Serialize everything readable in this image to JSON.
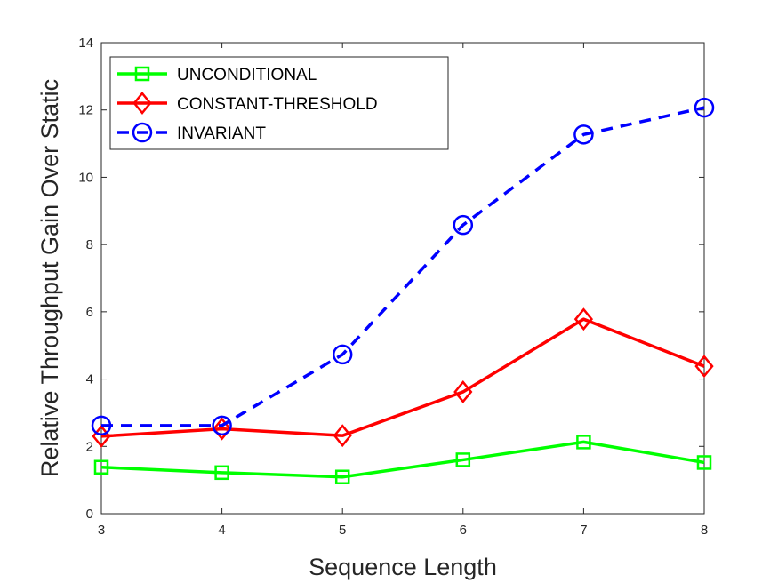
{
  "chart_data": {
    "type": "line",
    "xlabel": "Sequence Length",
    "ylabel": "Relative Throughput Gain Over Static",
    "x": [
      3,
      4,
      5,
      6,
      7,
      8
    ],
    "xlim": [
      3,
      8
    ],
    "ylim": [
      0,
      14
    ],
    "xticks": [
      "3",
      "4",
      "5",
      "6",
      "7",
      "8"
    ],
    "yticks": [
      "0",
      "2",
      "4",
      "6",
      "8",
      "10",
      "12",
      "14"
    ],
    "grid": false,
    "legend_position": "top-left",
    "series": [
      {
        "name": "UNCONDITIONAL",
        "values": [
          1.38,
          1.22,
          1.09,
          1.6,
          2.13,
          1.52
        ],
        "color": "#00ff00",
        "line_style": "solid",
        "marker": "square"
      },
      {
        "name": "CONSTANT-THRESHOLD",
        "values": [
          2.3,
          2.52,
          2.32,
          3.62,
          5.78,
          4.38
        ],
        "color": "#ff0000",
        "line_style": "solid",
        "marker": "diamond"
      },
      {
        "name": "INVARIANT",
        "values": [
          2.62,
          2.62,
          4.73,
          8.58,
          11.27,
          12.07
        ],
        "color": "#0000ff",
        "line_style": "dashed",
        "marker": "circle"
      }
    ]
  }
}
